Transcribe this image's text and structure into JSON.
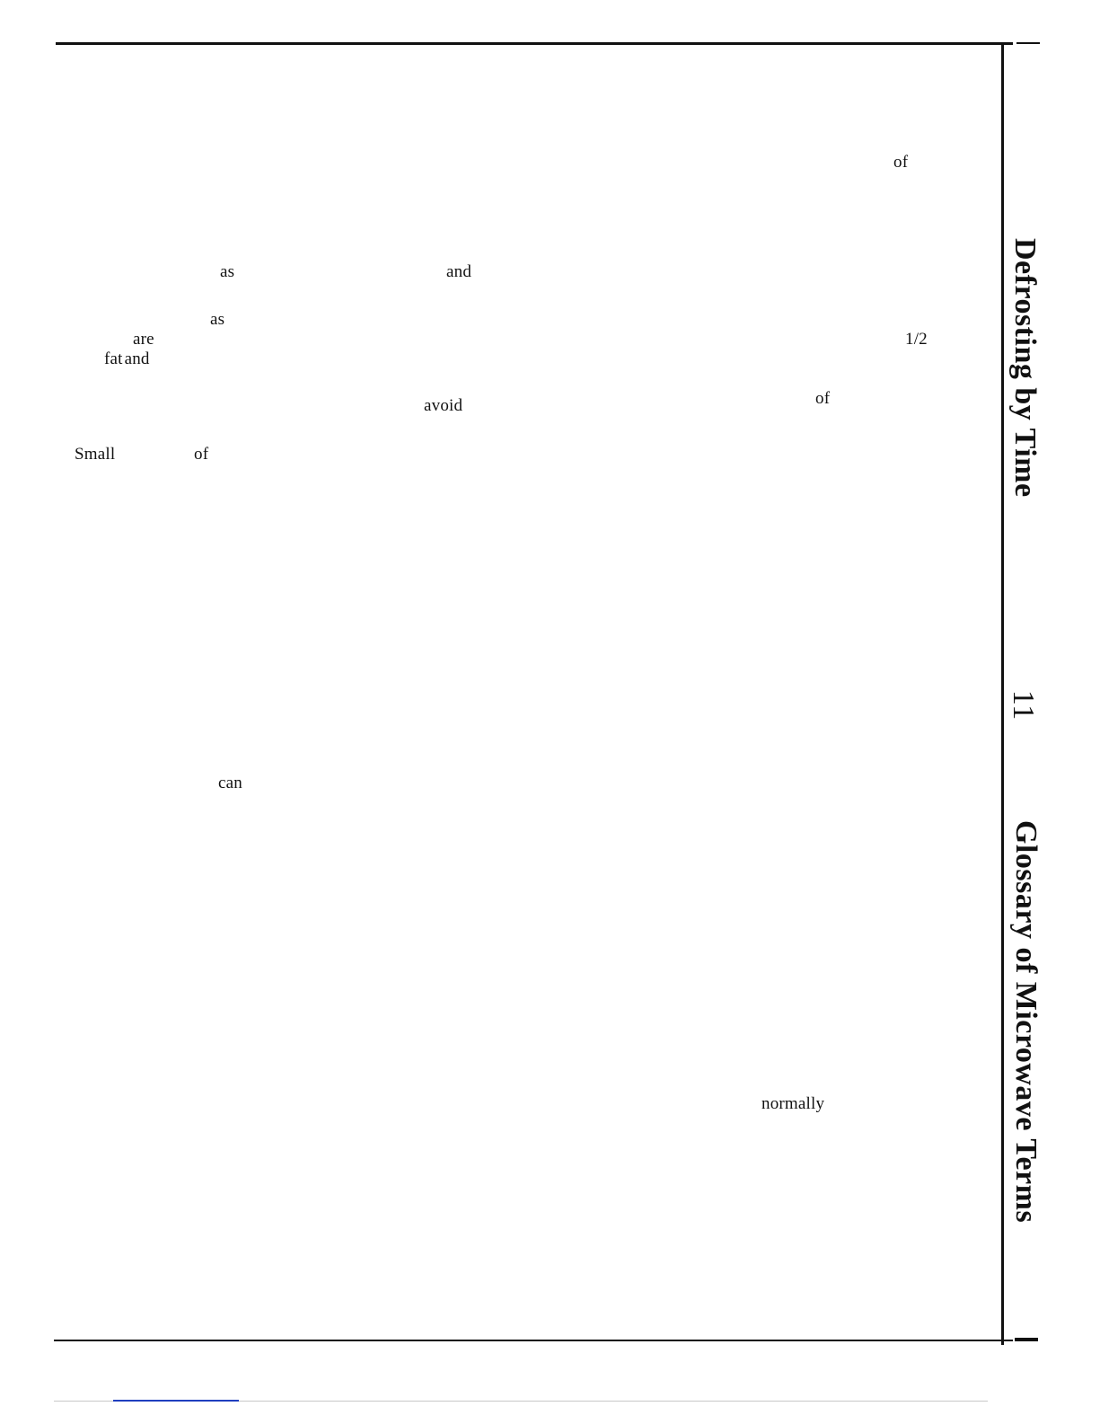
{
  "side_headings": {
    "defrosting": "Defrosting by Time",
    "glossary": "Glossary of Microwave Terms",
    "page_number": "11"
  },
  "fragments": {
    "f_of_1": "of",
    "f_as_1": "as",
    "f_and_1": "and",
    "f_as_2": "as",
    "f_are": "are",
    "f_half": "1/2",
    "f_fat_and": "fat and",
    "f_avoid": "avoid",
    "f_of_2": "of",
    "f_small": "Small",
    "f_of_3": "of",
    "f_can": "can",
    "f_normally": "normally"
  },
  "colors": {
    "ink": "#111111",
    "link_underline": "#1f3fbf"
  }
}
